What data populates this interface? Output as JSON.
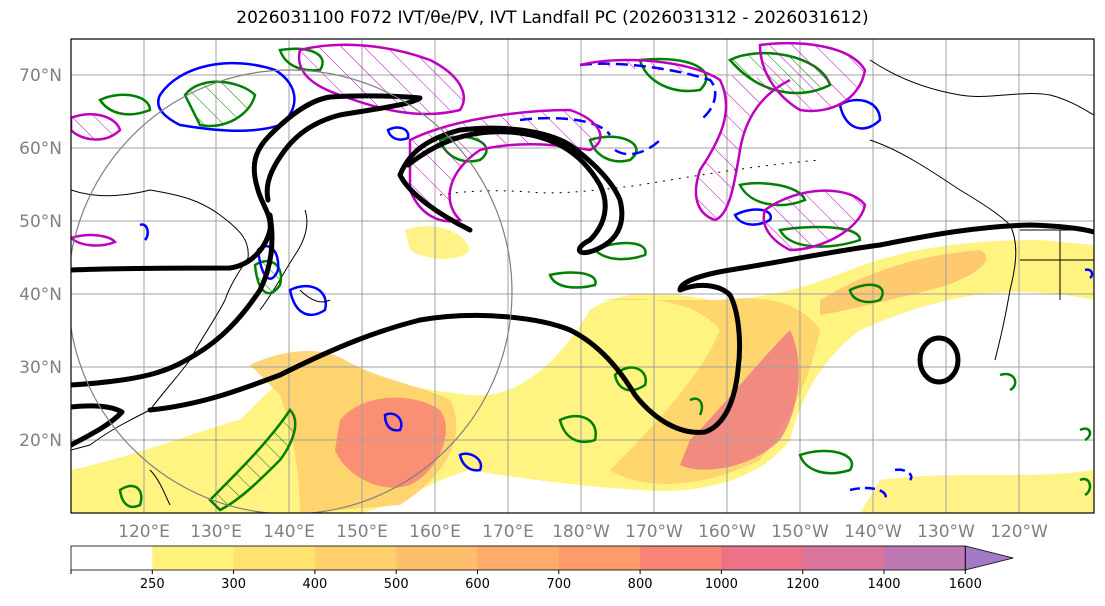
{
  "title": "2026031100 F072 IVT/θe/PV, IVT Landfall PC (2026031312 - 2026031612)",
  "lat_labels": [
    "70°N",
    "60°N",
    "50°N",
    "40°N",
    "30°N",
    "20°N"
  ],
  "lon_labels": [
    "120°E",
    "130°E",
    "140°E",
    "150°E",
    "160°E",
    "170°E",
    "180°W",
    "170°W",
    "160°W",
    "150°W",
    "140°W",
    "130°W",
    "120°W"
  ],
  "colorbar": {
    "levels": [
      "250",
      "300",
      "400",
      "500",
      "600",
      "700",
      "800",
      "1000",
      "1200",
      "1400",
      "1600"
    ],
    "colors": [
      "#fff27a",
      "#ffe36e",
      "#ffd06b",
      "#ffbe6b",
      "#ffab6b",
      "#ff9a6b",
      "#f98375",
      "#ec7287",
      "#d9749b",
      "#bd78b4",
      "#a47ac6"
    ]
  },
  "colors": {
    "ivt_fill": "#ffb366",
    "pv_contour": "#008000",
    "theta_contour_blue": "#0000ff",
    "theta_contour_magenta": "#c000c0",
    "landfall_contour": "#000000",
    "pc_circle": "#808080",
    "coastline": "#000000",
    "grid": "#a0a0a0"
  }
}
